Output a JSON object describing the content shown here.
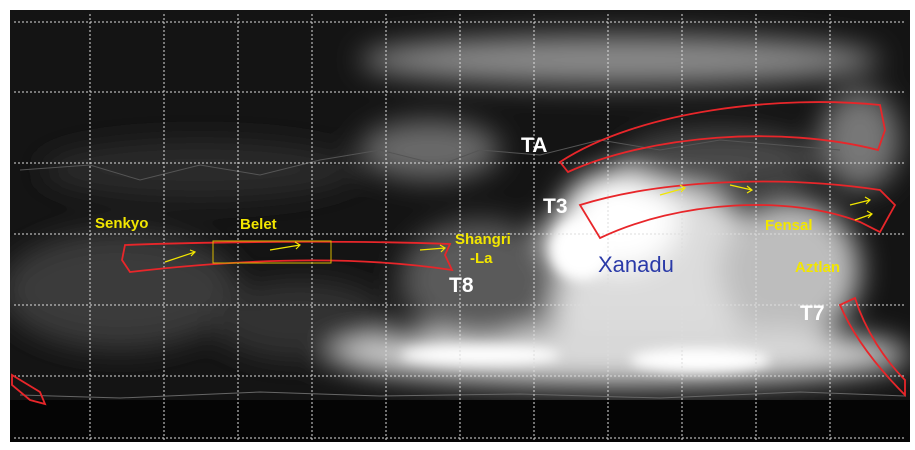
{
  "regions": [
    {
      "label": "Senkyo"
    },
    {
      "label": "Belet"
    },
    {
      "lines": [
        "Shangri",
        "-La"
      ]
    },
    {
      "label": "Xanadu"
    },
    {
      "label": "Fensal"
    },
    {
      "label": "Aztlan"
    }
  ],
  "flybys": [
    {
      "label": "TA"
    },
    {
      "label": "T3"
    },
    {
      "label": "T8"
    },
    {
      "label": "T7"
    }
  ]
}
